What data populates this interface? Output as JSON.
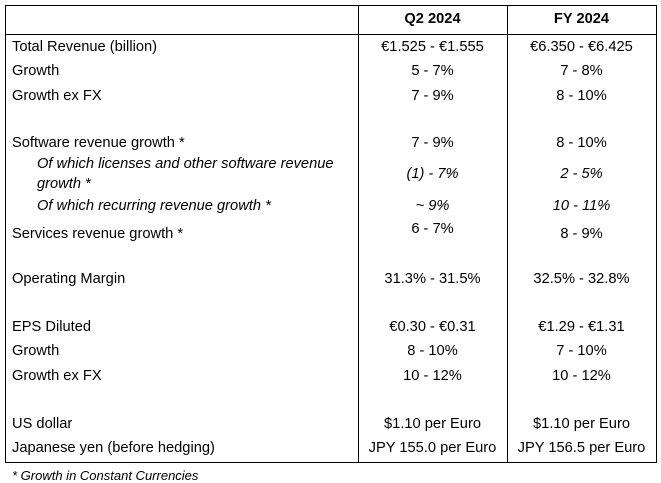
{
  "table": {
    "columns": {
      "q2": "Q2 2024",
      "fy": "FY 2024"
    },
    "rows": [
      {
        "label": "Total Revenue (billion)",
        "q2": "€1.525 - €1.555",
        "fy": "€6.350 - €6.425"
      },
      {
        "label": "Growth",
        "q2": "5 - 7%",
        "fy": "7 - 8%"
      },
      {
        "label": "Growth ex FX",
        "q2": "7 - 9%",
        "fy": "8 - 10%"
      },
      {
        "label": "Software revenue growth *",
        "q2": "7 - 9%",
        "fy": "8 - 10%"
      },
      {
        "label": "Of which licenses and other software revenue growth *",
        "q2": "(1) - 7%",
        "fy": "2 - 5%"
      },
      {
        "label": "Of which recurring revenue growth *",
        "q2": "~ 9%",
        "fy": "10 - 11%"
      },
      {
        "label": "Services revenue growth *",
        "q2": "6 - 7%",
        "fy": "8 - 9%"
      },
      {
        "label": "Operating Margin",
        "q2": "31.3% - 31.5%",
        "fy": "32.5% - 32.8%"
      },
      {
        "label": "EPS Diluted",
        "q2": "€0.30 - €0.31",
        "fy": "€1.29 - €1.31"
      },
      {
        "label": "Growth",
        "q2": "8 - 10%",
        "fy": "7 - 10%"
      },
      {
        "label": "Growth ex FX",
        "q2": "10 - 12%",
        "fy": "10 - 12%"
      },
      {
        "label": "US dollar",
        "q2": "$1.10 per Euro",
        "fy": "$1.10 per Euro"
      },
      {
        "label": "Japanese yen (before hedging)",
        "q2": "JPY 155.0 per Euro",
        "fy": "JPY 156.5 per Euro"
      }
    ]
  },
  "footnote": "* Growth in Constant Currencies"
}
